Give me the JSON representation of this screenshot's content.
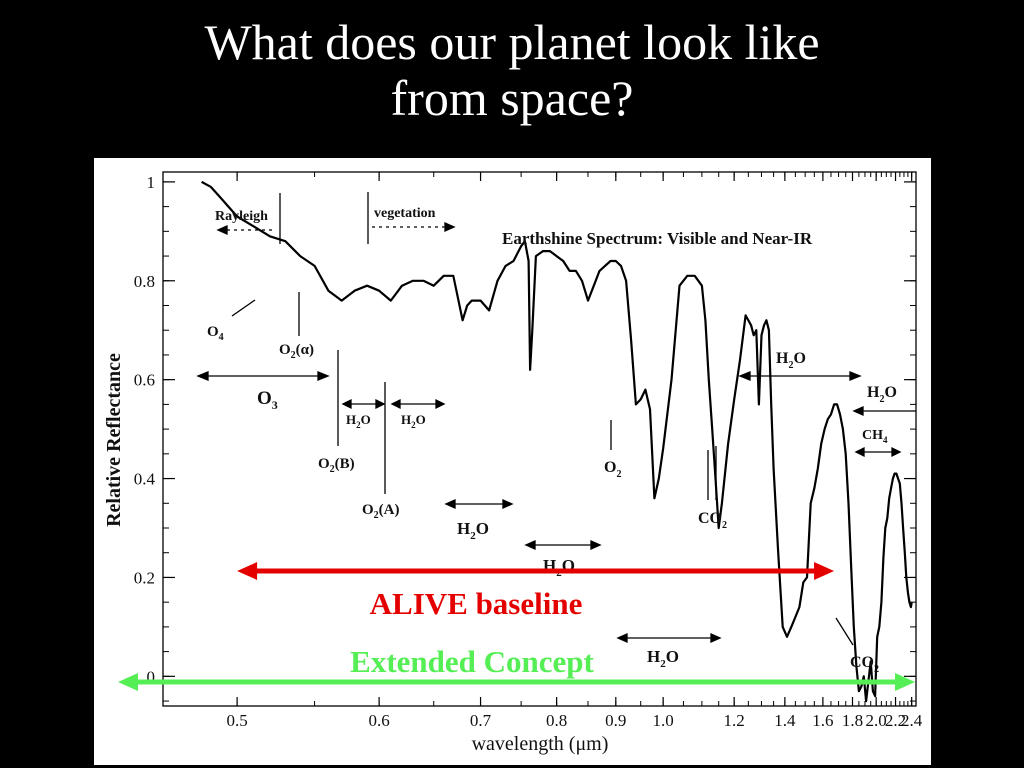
{
  "slide": {
    "title_line1": "What does our planet look like",
    "title_line2": "from space?"
  },
  "chart_data": {
    "type": "line",
    "title": "Earthshine Spectrum: Visible and Near-IR",
    "xlabel": "wavelength (μm)",
    "ylabel": "Relative Reflectance",
    "xlim": [
      0.46,
      2.46
    ],
    "xscale": "reciprocal",
    "ylim": [
      -0.06,
      1.02
    ],
    "x_ticks": [
      0.5,
      0.6,
      0.7,
      0.8,
      0.9,
      1.0,
      1.2,
      1.4,
      1.6,
      1.8,
      2.0,
      2.2,
      2.4
    ],
    "x_tick_labels": [
      "0.5",
      "0.6",
      "0.7",
      "0.8",
      "0.9",
      "1.0",
      "1.2",
      "1.4",
      "1.6",
      "1.8",
      "2.0",
      "2.2",
      "2.4"
    ],
    "y_ticks": [
      0,
      0.2,
      0.4,
      0.6,
      0.8,
      1
    ],
    "y_tick_labels": [
      "0",
      "0.2",
      "0.4",
      "0.6",
      "0.8",
      "1"
    ],
    "series": [
      {
        "x": [
          0.48,
          0.485,
          0.49,
          0.5,
          0.51,
          0.52,
          0.53,
          0.54,
          0.55,
          0.56,
          0.57,
          0.58,
          0.59,
          0.6,
          0.61,
          0.62,
          0.63,
          0.64,
          0.65,
          0.66,
          0.67,
          0.68,
          0.685,
          0.69,
          0.7,
          0.71,
          0.72,
          0.73,
          0.74,
          0.75,
          0.755,
          0.76,
          0.762,
          0.765,
          0.77,
          0.78,
          0.79,
          0.8,
          0.81,
          0.82,
          0.83,
          0.84,
          0.85,
          0.86,
          0.87,
          0.88,
          0.89,
          0.9,
          0.91,
          0.92,
          0.93,
          0.94,
          0.95,
          0.96,
          0.97,
          0.98,
          0.99,
          1.0,
          1.02,
          1.04,
          1.06,
          1.08,
          1.1,
          1.11,
          1.12,
          1.13,
          1.14,
          1.15,
          1.16,
          1.18,
          1.2,
          1.22,
          1.24,
          1.26,
          1.27,
          1.28,
          1.29,
          1.3,
          1.31,
          1.32,
          1.33,
          1.34,
          1.35,
          1.37,
          1.39,
          1.41,
          1.43,
          1.45,
          1.47,
          1.49,
          1.51,
          1.53,
          1.55,
          1.57,
          1.59,
          1.61,
          1.63,
          1.65,
          1.67,
          1.69,
          1.71,
          1.73,
          1.75,
          1.77,
          1.79,
          1.81,
          1.83,
          1.85,
          1.87,
          1.89,
          1.91,
          1.93,
          1.95,
          1.97,
          1.99,
          2.01,
          2.03,
          2.05,
          2.07,
          2.09,
          2.11,
          2.13,
          2.15,
          2.17,
          2.19,
          2.21,
          2.23,
          2.25,
          2.27,
          2.29,
          2.31,
          2.33,
          2.35,
          2.37,
          2.39,
          2.4
        ],
        "y": [
          1.0,
          0.99,
          0.97,
          0.93,
          0.91,
          0.89,
          0.88,
          0.85,
          0.83,
          0.78,
          0.76,
          0.78,
          0.79,
          0.78,
          0.76,
          0.79,
          0.8,
          0.8,
          0.79,
          0.81,
          0.81,
          0.72,
          0.75,
          0.76,
          0.76,
          0.74,
          0.8,
          0.83,
          0.84,
          0.87,
          0.88,
          0.84,
          0.62,
          0.7,
          0.85,
          0.86,
          0.86,
          0.85,
          0.84,
          0.82,
          0.82,
          0.8,
          0.76,
          0.79,
          0.82,
          0.83,
          0.84,
          0.84,
          0.83,
          0.8,
          0.68,
          0.55,
          0.56,
          0.58,
          0.54,
          0.36,
          0.4,
          0.46,
          0.6,
          0.79,
          0.81,
          0.81,
          0.79,
          0.72,
          0.6,
          0.5,
          0.4,
          0.3,
          0.35,
          0.47,
          0.56,
          0.64,
          0.73,
          0.71,
          0.69,
          0.7,
          0.55,
          0.69,
          0.71,
          0.72,
          0.7,
          0.55,
          0.42,
          0.25,
          0.1,
          0.08,
          0.1,
          0.12,
          0.14,
          0.19,
          0.2,
          0.35,
          0.38,
          0.42,
          0.47,
          0.5,
          0.52,
          0.53,
          0.55,
          0.55,
          0.53,
          0.5,
          0.45,
          0.35,
          0.22,
          0.1,
          0.02,
          -0.03,
          -0.02,
          0.0,
          -0.05,
          -0.01,
          0.03,
          -0.03,
          -0.04,
          0.08,
          0.1,
          0.15,
          0.24,
          0.3,
          0.32,
          0.36,
          0.38,
          0.4,
          0.41,
          0.41,
          0.4,
          0.39,
          0.35,
          0.3,
          0.25,
          0.2,
          0.17,
          0.15,
          0.14,
          0.15
        ]
      }
    ],
    "annotations": [
      {
        "text": "Rayleigh"
      },
      {
        "text": "vegetation"
      },
      {
        "text": "O",
        "sub": "4"
      },
      {
        "text": "O",
        "sub": "2",
        "suffix": "(α)"
      },
      {
        "text": "O",
        "sub": "3"
      },
      {
        "text": "H",
        "sub": "2",
        "suffix": "O"
      },
      {
        "text": "H",
        "sub": "2",
        "suffix": "O"
      },
      {
        "text": "O",
        "sub": "2",
        "suffix": "(B)"
      },
      {
        "text": "O",
        "sub": "2",
        "suffix": "(A)"
      },
      {
        "text": "H",
        "sub": "2",
        "suffix": "O"
      },
      {
        "text": "H",
        "sub": "2",
        "suffix": "O"
      },
      {
        "text": "O",
        "sub": "2"
      },
      {
        "text": "CO",
        "sub": "2"
      },
      {
        "text": "H",
        "sub": "2",
        "suffix": "O"
      },
      {
        "text": "H",
        "sub": "2",
        "suffix": "O"
      },
      {
        "text": "CH",
        "sub": "4"
      },
      {
        "text": "H",
        "sub": "2",
        "suffix": "O"
      },
      {
        "text": "CO",
        "sub": "2"
      }
    ],
    "range_arrows": [
      {
        "label": "ALIVE baseline",
        "color": "#e50000",
        "x_start": 0.5,
        "x_end": 1.67
      },
      {
        "label": "Extended Concept",
        "color": "#55ee55",
        "x_start": 0.46,
        "x_end": 2.46
      }
    ]
  }
}
